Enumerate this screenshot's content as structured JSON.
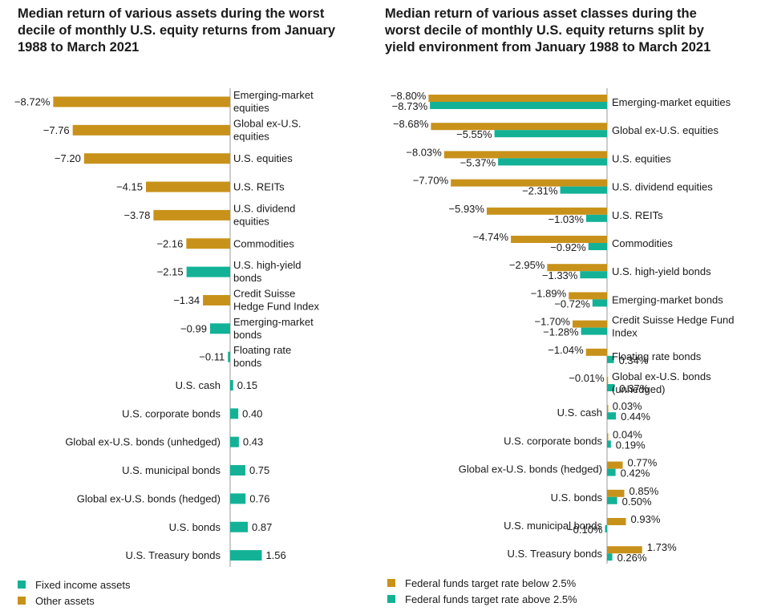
{
  "colors": {
    "fixed_income": "#13b297",
    "other": "#c8921a",
    "below": "#c8921a",
    "above": "#13b297"
  },
  "chart_data": [
    {
      "type": "bar",
      "orientation": "horizontal",
      "title": "Median return of various assets during the worst decile of monthly U.S. equity returns from January 1988 to March 2021",
      "categories": [
        "Emerging-market equities",
        "Global ex-U.S. equities",
        "U.S. equities",
        "U.S. REITs",
        "U.S. dividend equities",
        "Commodities",
        "U.S. high-yield bonds",
        "Credit Suisse Hedge Fund Index",
        "Emerging-market bonds",
        "Floating rate bonds",
        "U.S. cash",
        "U.S. corporate bonds",
        "Global ex-U.S. bonds (unhedged)",
        "U.S. municipal bonds",
        "Global ex-U.S. bonds (hedged)",
        "U.S. bonds",
        "U.S. Treasury bonds"
      ],
      "values": [
        -8.72,
        -7.76,
        -7.2,
        -4.15,
        -3.78,
        -2.16,
        -2.15,
        -1.34,
        -0.99,
        -0.11,
        0.15,
        0.4,
        0.43,
        0.75,
        0.76,
        0.87,
        1.56
      ],
      "value_labels": [
        "−8.72%",
        "−7.76",
        "−7.20",
        "−4.15",
        "−3.78",
        "−2.16",
        "−2.15",
        "−1.34",
        "−0.99",
        "−0.11",
        "0.15",
        "0.40",
        "0.43",
        "0.75",
        "0.76",
        "0.87",
        "1.56"
      ],
      "groups": [
        "other",
        "other",
        "other",
        "other",
        "other",
        "other",
        "fixed_income",
        "other",
        "fixed_income",
        "fixed_income",
        "fixed_income",
        "fixed_income",
        "fixed_income",
        "fixed_income",
        "fixed_income",
        "fixed_income",
        "fixed_income"
      ],
      "legend": [
        {
          "key": "fixed_income",
          "label": "Fixed income assets"
        },
        {
          "key": "other",
          "label": "Other assets"
        }
      ],
      "legend_position": "bottom-left"
    },
    {
      "type": "bar",
      "orientation": "horizontal",
      "title": "Median return of various asset classes during the worst decile of monthly U.S. equity returns split by yield environment from January 1988 to March 2021",
      "categories": [
        "Emerging-market equities",
        "Global ex-U.S. equities",
        "U.S. equities",
        "U.S. dividend equities",
        "U.S. REITs",
        "Commodities",
        "U.S. high-yield bonds",
        "Emerging-market bonds",
        "Credit Suisse Hedge Fund Index",
        "Floating rate bonds",
        "Global ex-U.S. bonds (unhedged)",
        "U.S. cash",
        "U.S. corporate bonds",
        "Global ex-U.S. bonds (hedged)",
        "U.S. bonds",
        "U.S. municipal bonds",
        "U.S. Treasury bonds"
      ],
      "series": [
        {
          "name": "Federal funds target rate below 2.5%",
          "key": "below",
          "values": [
            -8.8,
            -8.68,
            -8.03,
            -7.7,
            -5.93,
            -4.74,
            -2.95,
            -1.89,
            -1.7,
            -1.04,
            -0.01,
            0.03,
            0.04,
            0.77,
            0.85,
            0.93,
            1.73
          ],
          "value_labels": [
            "−8.80%",
            "−8.68%",
            "−8.03%",
            "−7.70%",
            "−5.93%",
            "−4.74%",
            "−2.95%",
            "−1.89%",
            "−1.70%",
            "−1.04%",
            "−0.01%",
            "0.03%",
            "0.04%",
            "0.77%",
            "0.85%",
            "0.93%",
            "1.73%"
          ]
        },
        {
          "name": "Federal funds target rate above 2.5%",
          "key": "above",
          "values": [
            -8.73,
            -5.55,
            -5.37,
            -2.31,
            -1.03,
            -0.92,
            -1.33,
            -0.72,
            -1.28,
            0.34,
            0.37,
            0.44,
            0.19,
            0.42,
            0.5,
            -0.1,
            0.26
          ],
          "value_labels": [
            "−8.73%",
            "−5.55%",
            "−5.37%",
            "−2.31%",
            "−1.03%",
            "−0.92%",
            "−1.33%",
            "−0.72%",
            "−1.28%",
            "0.34%",
            "0.37%",
            "0.44%",
            "0.19%",
            "0.42%",
            "0.50%",
            "−0.10%",
            "0.26%"
          ]
        }
      ],
      "legend_position": "bottom-left"
    }
  ]
}
